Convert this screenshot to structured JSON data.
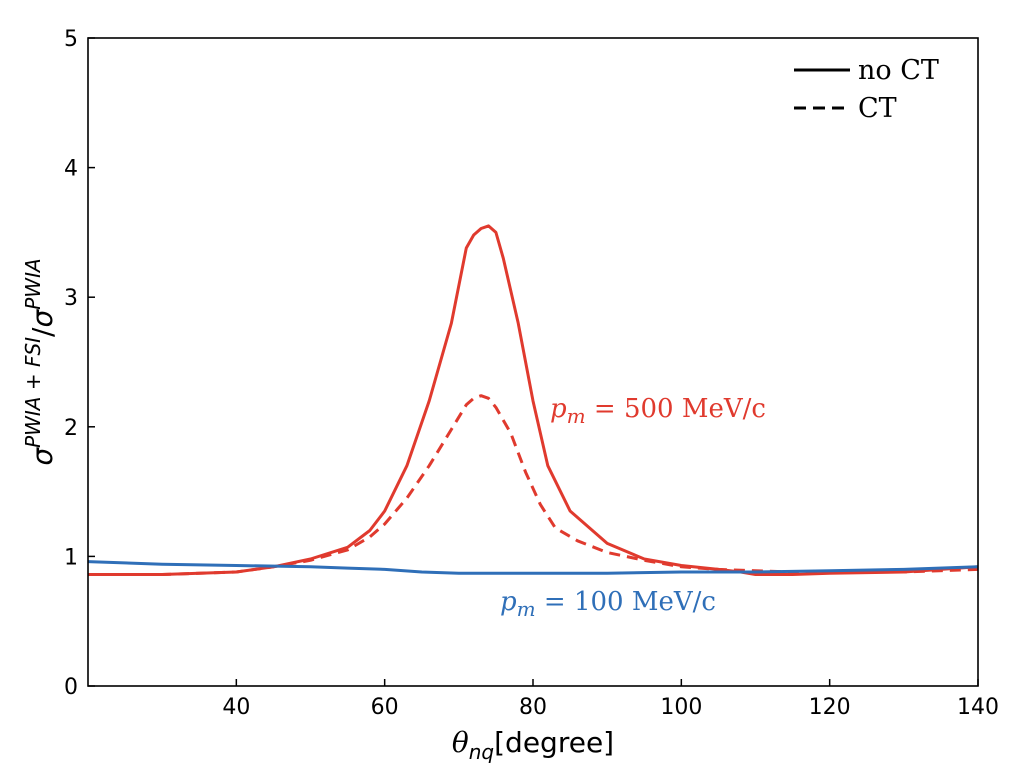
{
  "chart_data": {
    "type": "line",
    "xlabel": "θ_nq[degree]",
    "ylabel": "σ^{PWIA+FSI}/σ^{PWIA}",
    "xlim": [
      20,
      140
    ],
    "ylim": [
      0,
      5
    ],
    "xticks": [
      40,
      60,
      80,
      100,
      120,
      140
    ],
    "yticks": [
      0,
      1,
      2,
      3,
      4,
      5
    ],
    "legend": {
      "position": "top-right",
      "entries": [
        {
          "label": "no CT",
          "style": "solid"
        },
        {
          "label": "CT",
          "style": "dashed"
        }
      ]
    },
    "annotations": [
      {
        "main": "p",
        "sub": "m",
        "rest": " = 500 MeV/c",
        "color": "#e03a2e"
      },
      {
        "main": "p",
        "sub": "m",
        "rest": " = 100 MeV/c",
        "color": "#2f6fb8"
      }
    ],
    "series": [
      {
        "name": "pm = 500 MeV/c, no CT",
        "color": "#e03a2e",
        "style": "solid",
        "points": [
          [
            20,
            0.86
          ],
          [
            30,
            0.86
          ],
          [
            40,
            0.88
          ],
          [
            45,
            0.92
          ],
          [
            50,
            0.98
          ],
          [
            55,
            1.07
          ],
          [
            58,
            1.2
          ],
          [
            60,
            1.35
          ],
          [
            63,
            1.7
          ],
          [
            66,
            2.2
          ],
          [
            69,
            2.8
          ],
          [
            71,
            3.38
          ],
          [
            72,
            3.48
          ],
          [
            73,
            3.53
          ],
          [
            74,
            3.55
          ],
          [
            75,
            3.5
          ],
          [
            76,
            3.3
          ],
          [
            78,
            2.8
          ],
          [
            80,
            2.2
          ],
          [
            82,
            1.7
          ],
          [
            85,
            1.35
          ],
          [
            90,
            1.1
          ],
          [
            95,
            0.98
          ],
          [
            100,
            0.93
          ],
          [
            105,
            0.9
          ],
          [
            108,
            0.88
          ],
          [
            110,
            0.86
          ],
          [
            115,
            0.86
          ],
          [
            120,
            0.87
          ],
          [
            130,
            0.88
          ],
          [
            140,
            0.92
          ]
        ]
      },
      {
        "name": "pm = 500 MeV/c, CT",
        "color": "#e03a2e",
        "style": "dashed",
        "points": [
          [
            20,
            0.86
          ],
          [
            30,
            0.86
          ],
          [
            40,
            0.88
          ],
          [
            45,
            0.92
          ],
          [
            50,
            0.97
          ],
          [
            55,
            1.05
          ],
          [
            58,
            1.15
          ],
          [
            60,
            1.25
          ],
          [
            63,
            1.45
          ],
          [
            66,
            1.7
          ],
          [
            69,
            1.98
          ],
          [
            71,
            2.17
          ],
          [
            72,
            2.22
          ],
          [
            73,
            2.24
          ],
          [
            74,
            2.22
          ],
          [
            75,
            2.15
          ],
          [
            77,
            1.95
          ],
          [
            79,
            1.65
          ],
          [
            81,
            1.4
          ],
          [
            83,
            1.22
          ],
          [
            86,
            1.12
          ],
          [
            90,
            1.03
          ],
          [
            95,
            0.97
          ],
          [
            100,
            0.92
          ],
          [
            105,
            0.9
          ],
          [
            110,
            0.89
          ],
          [
            115,
            0.88
          ],
          [
            120,
            0.88
          ],
          [
            130,
            0.88
          ],
          [
            140,
            0.9
          ]
        ]
      },
      {
        "name": "pm = 100 MeV/c",
        "color": "#2f6fb8",
        "style": "solid",
        "points": [
          [
            20,
            0.96
          ],
          [
            30,
            0.94
          ],
          [
            40,
            0.93
          ],
          [
            50,
            0.92
          ],
          [
            55,
            0.91
          ],
          [
            60,
            0.9
          ],
          [
            65,
            0.88
          ],
          [
            70,
            0.87
          ],
          [
            80,
            0.87
          ],
          [
            90,
            0.87
          ],
          [
            100,
            0.88
          ],
          [
            110,
            0.88
          ],
          [
            120,
            0.89
          ],
          [
            130,
            0.9
          ],
          [
            140,
            0.92
          ]
        ]
      }
    ]
  }
}
